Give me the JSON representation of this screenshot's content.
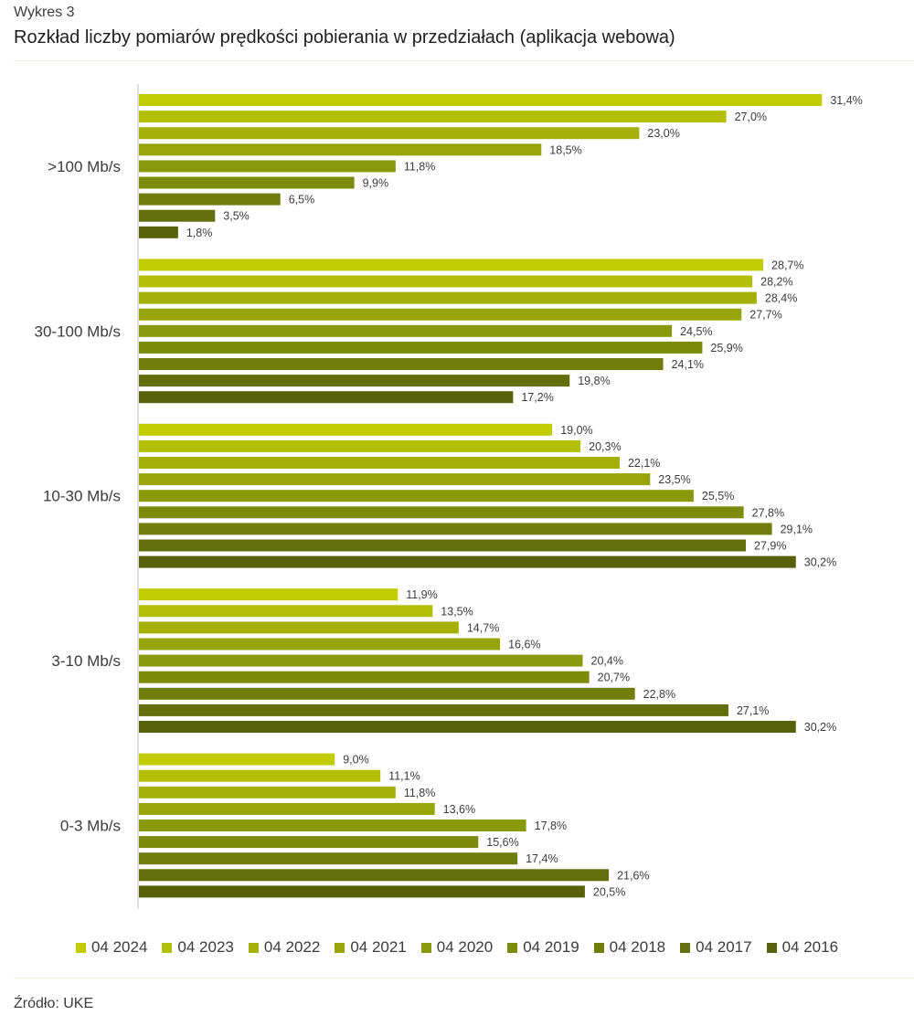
{
  "header": {
    "label": "Wykres 3",
    "title": "Rozkład liczby pomiarów prędkości pobierania w przedziałach (aplikacja webowa)"
  },
  "footer": {
    "source": "Źródło: UKE"
  },
  "chart_data": {
    "type": "bar",
    "orientation": "horizontal",
    "title": "",
    "xlabel": "",
    "ylabel": "",
    "xlim": [
      0,
      35
    ],
    "grid": false,
    "legend_position": "bottom",
    "value_format": "percent-comma-1-decimal",
    "categories": [
      ">100 Mb/s",
      "30-100 Mb/s",
      "10-30 Mb/s",
      "3-10 Mb/s",
      "0-3 Mb/s"
    ],
    "series": [
      {
        "name": "04 2024",
        "color": "#c3cc00",
        "values": [
          31.4,
          28.7,
          19.0,
          11.9,
          9.0
        ]
      },
      {
        "name": "04 2023",
        "color": "#b3bf06",
        "values": [
          27.0,
          28.2,
          20.3,
          13.5,
          11.1
        ]
      },
      {
        "name": "04 2022",
        "color": "#a5b10a",
        "values": [
          23.0,
          28.4,
          22.1,
          14.7,
          11.8
        ]
      },
      {
        "name": "04 2021",
        "color": "#98a50a",
        "values": [
          18.5,
          27.7,
          23.5,
          16.6,
          13.6
        ]
      },
      {
        "name": "04 2020",
        "color": "#8a990b",
        "values": [
          11.8,
          24.5,
          25.5,
          20.4,
          17.8
        ]
      },
      {
        "name": "04 2019",
        "color": "#7d8b0b",
        "values": [
          9.9,
          25.9,
          27.8,
          20.7,
          15.6
        ]
      },
      {
        "name": "04 2018",
        "color": "#707d0c",
        "values": [
          6.5,
          24.1,
          29.1,
          22.8,
          17.4
        ]
      },
      {
        "name": "04 2017",
        "color": "#636f0c",
        "values": [
          3.5,
          19.8,
          27.9,
          27.1,
          21.6
        ]
      },
      {
        "name": "04 2016",
        "color": "#566109",
        "values": [
          1.8,
          17.2,
          30.2,
          30.2,
          20.5
        ]
      }
    ]
  }
}
